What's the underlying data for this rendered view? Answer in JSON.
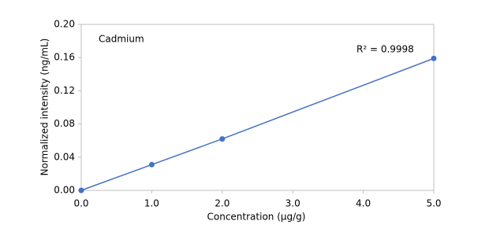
{
  "chart_data": {
    "type": "scatter",
    "x_label": "Concentration (µg/g)",
    "y_label": "Normalized intensity (ng/mL)",
    "annotations": [
      "Cadmium",
      "R² = 0.9998"
    ],
    "x": [
      0,
      1,
      2,
      5
    ],
    "series": [
      {
        "name": "Cadmium",
        "color": "#4472c4",
        "values": [
          0,
          0.031,
          0.062,
          0.159
        ]
      }
    ],
    "xlim": [
      0,
      5
    ],
    "xticks": [
      {
        "value": 0,
        "label": "0.0"
      },
      {
        "value": 1,
        "label": "1.0"
      },
      {
        "value": 2,
        "label": "2.0"
      },
      {
        "value": 3,
        "label": "3.0"
      },
      {
        "value": 4,
        "label": "4.0"
      },
      {
        "value": 5,
        "label": "5.0"
      }
    ],
    "ylim": [
      0,
      0.2
    ],
    "yticks": [
      {
        "value": 0,
        "label": "0.00"
      },
      {
        "value": 0.04,
        "label": "0.04"
      },
      {
        "value": 0.08,
        "label": "0.08"
      },
      {
        "value": 0.12,
        "label": "0.12"
      },
      {
        "value": 0.16,
        "label": "0.16"
      },
      {
        "value": 0.2,
        "label": "0.20"
      }
    ],
    "grid": false
  }
}
